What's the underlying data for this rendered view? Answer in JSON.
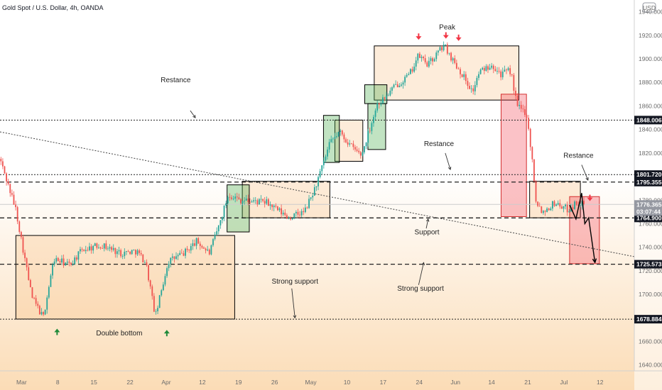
{
  "chart_data": {
    "type": "candlestick",
    "title": "Gold Spot / U.S. Dollar, 4h, OANDA",
    "currency_badge": "USD",
    "y_axis": {
      "range": [
        1635,
        1950
      ],
      "ticks": [
        1940,
        1920,
        1900,
        1880,
        1860,
        1840,
        1820,
        1800,
        1780,
        1760,
        1740,
        1720,
        1700,
        1680,
        1660,
        1640
      ],
      "tick_labels": [
        "1940.000",
        "1920.000",
        "1900.000",
        "1880.000",
        "1860.000",
        "1840.000",
        "1820.000",
        "1800.000",
        "1780.000",
        "1760.000",
        "1740.000",
        "1720.000",
        "1700.000",
        "1680.000",
        "1660.000",
        "1640.000"
      ]
    },
    "x_axis": {
      "tick_labels": [
        "Mar",
        "8",
        "15",
        "22",
        "Apr",
        "12",
        "19",
        "26",
        "May",
        "10",
        "17",
        "24",
        "Jun",
        "14",
        "21",
        "Jul",
        "12"
      ]
    },
    "current_price": {
      "value": 1776.365,
      "label": "1776.365",
      "countdown": "03:07:44"
    },
    "levels": [
      {
        "value": 1848.006,
        "label": "1848.006",
        "style": "dotted"
      },
      {
        "value": 1801.72,
        "label": "1801.720",
        "style": "dotted"
      },
      {
        "value": 1795.355,
        "label": "1795.355",
        "style": "dashed"
      },
      {
        "value": 1764.9,
        "label": "1764.900",
        "style": "dashed"
      },
      {
        "value": 1725.573,
        "label": "1725.573",
        "style": "dashed"
      },
      {
        "value": 1678.884,
        "label": "1678.884",
        "style": "dotted"
      }
    ],
    "trendline": {
      "from": [
        0,
        1838
      ],
      "to": [
        1,
        1732
      ]
    },
    "candle_path": [
      [
        0,
        1815
      ],
      [
        0.025,
        1772
      ],
      [
        0.05,
        1698
      ],
      [
        0.068,
        1680
      ],
      [
        0.085,
        1730
      ],
      [
        0.11,
        1725
      ],
      [
        0.13,
        1738
      ],
      [
        0.16,
        1742
      ],
      [
        0.19,
        1735
      ],
      [
        0.215,
        1737
      ],
      [
        0.23,
        1727
      ],
      [
        0.245,
        1681
      ],
      [
        0.265,
        1728
      ],
      [
        0.29,
        1735
      ],
      [
        0.31,
        1745
      ],
      [
        0.33,
        1735
      ],
      [
        0.345,
        1758
      ],
      [
        0.36,
        1785
      ],
      [
        0.38,
        1780
      ],
      [
        0.42,
        1778
      ],
      [
        0.455,
        1765
      ],
      [
        0.48,
        1770
      ],
      [
        0.495,
        1788
      ],
      [
        0.505,
        1803
      ],
      [
        0.52,
        1828
      ],
      [
        0.535,
        1838
      ],
      [
        0.555,
        1825
      ],
      [
        0.57,
        1818
      ],
      [
        0.585,
        1845
      ],
      [
        0.595,
        1862
      ],
      [
        0.605,
        1866
      ],
      [
        0.625,
        1878
      ],
      [
        0.645,
        1886
      ],
      [
        0.66,
        1903
      ],
      [
        0.675,
        1895
      ],
      [
        0.7,
        1912
      ],
      [
        0.715,
        1898
      ],
      [
        0.73,
        1886
      ],
      [
        0.745,
        1872
      ],
      [
        0.755,
        1888
      ],
      [
        0.775,
        1896
      ],
      [
        0.79,
        1887
      ],
      [
        0.805,
        1890
      ],
      [
        0.815,
        1860
      ],
      [
        0.83,
        1854
      ],
      [
        0.84,
        1810
      ],
      [
        0.845,
        1780
      ],
      [
        0.855,
        1770
      ],
      [
        0.875,
        1778
      ],
      [
        0.895,
        1772
      ],
      [
        0.91,
        1778
      ],
      [
        0.922,
        1776
      ]
    ],
    "consolidation_zones": [
      {
        "x0": 0.025,
        "x1": 0.37,
        "y0": 1679,
        "y1": 1750
      },
      {
        "x0": 0.382,
        "x1": 0.52,
        "y0": 1765,
        "y1": 1796
      },
      {
        "x0": 0.59,
        "x1": 0.818,
        "y0": 1865,
        "y1": 1911
      },
      {
        "x0": 0.528,
        "x1": 0.572,
        "y0": 1813,
        "y1": 1848
      },
      {
        "x0": 0.835,
        "x1": 0.915,
        "y0": 1765,
        "y1": 1796
      }
    ],
    "bull_boxes": [
      {
        "x0": 0.358,
        "x1": 0.393,
        "y0": 1753,
        "y1": 1793
      },
      {
        "x0": 0.51,
        "x1": 0.535,
        "y0": 1812,
        "y1": 1852
      },
      {
        "x0": 0.58,
        "x1": 0.608,
        "y0": 1823,
        "y1": 1862
      },
      {
        "x0": 0.575,
        "x1": 0.61,
        "y0": 1862,
        "y1": 1878
      }
    ],
    "bear_boxes": [
      {
        "x0": 0.79,
        "x1": 0.83,
        "y0": 1766,
        "y1": 1870
      },
      {
        "x0": 0.898,
        "x1": 0.945,
        "y0": 1726,
        "y1": 1783
      }
    ],
    "projection": [
      [
        0.898,
        1776
      ],
      [
        0.908,
        1764
      ],
      [
        0.917,
        1786
      ],
      [
        0.922,
        1760
      ],
      [
        0.928,
        1765
      ],
      [
        0.938,
        1727
      ]
    ],
    "annotations": [
      {
        "text": "Peak",
        "x": 0.705,
        "y": 1925
      },
      {
        "text": "Restance",
        "x": 0.277,
        "y": 1880
      },
      {
        "text": "Restance",
        "x": 0.692,
        "y": 1826
      },
      {
        "text": "Restance",
        "x": 0.912,
        "y": 1816
      },
      {
        "text": "Support",
        "x": 0.673,
        "y": 1751
      },
      {
        "text": "Strong support",
        "x": 0.465,
        "y": 1709
      },
      {
        "text": "Strong support",
        "x": 0.663,
        "y": 1703
      },
      {
        "text": "Double bottom",
        "x": 0.188,
        "y": 1665
      }
    ],
    "pointer_arrows": [
      {
        "from": [
          0.3,
          1856
        ],
        "to": [
          0.308,
          1850
        ]
      },
      {
        "from": [
          0.702,
          1820
        ],
        "to": [
          0.71,
          1806
        ]
      },
      {
        "from": [
          0.917,
          1810
        ],
        "to": [
          0.927,
          1797
        ]
      },
      {
        "from": [
          0.672,
          1756
        ],
        "to": [
          0.675,
          1764
        ]
      },
      {
        "from": [
          0.46,
          1705
        ],
        "to": [
          0.465,
          1680
        ]
      },
      {
        "from": [
          0.66,
          1708
        ],
        "to": [
          0.668,
          1727
        ]
      }
    ],
    "signal_arrows": [
      {
        "dir": "down",
        "x": 0.66,
        "y": 1918,
        "color": "#f23645"
      },
      {
        "dir": "down",
        "x": 0.703,
        "y": 1919,
        "color": "#f23645"
      },
      {
        "dir": "down",
        "x": 0.723,
        "y": 1917,
        "color": "#f23645"
      },
      {
        "dir": "down",
        "x": 0.93,
        "y": 1781,
        "color": "#f23645"
      },
      {
        "dir": "up",
        "x": 0.09,
        "y": 1669,
        "color": "#1f8a3a"
      },
      {
        "dir": "up",
        "x": 0.263,
        "y": 1668,
        "color": "#1f8a3a"
      }
    ],
    "colors": {
      "up_candle": "#26a69a",
      "down_candle": "#ef5350",
      "axis_label_bg": "#131722",
      "current_price_bg": "#9598a1",
      "bg_top": "#ffffff",
      "bg_bottom": "#fbdcb6"
    }
  }
}
